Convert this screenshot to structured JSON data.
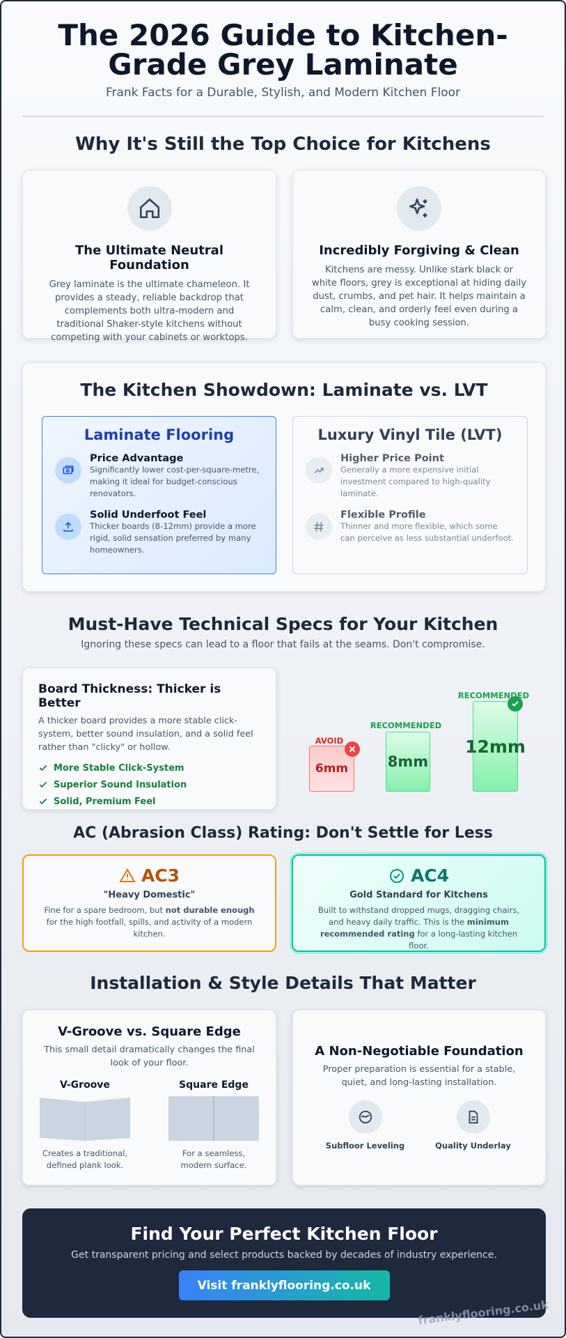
{
  "header": {
    "title": "The 2026 Guide to Kitchen-Grade Grey Laminate",
    "subtitle": "Frank Facts for a Durable, Stylish, and Modern Kitchen Floor"
  },
  "why": {
    "heading": "Why It's Still the Top Choice for Kitchens",
    "cards": [
      {
        "title": "The Ultimate Neutral Foundation",
        "text": "Grey laminate is the ultimate chameleon. It provides a steady, reliable backdrop that complements both ultra-modern and traditional Shaker-style kitchens without competing with your cabinets or worktops."
      },
      {
        "title": "Incredibly Forgiving & Clean",
        "text": "Kitchens are messy. Unlike stark black or white floors, grey is exceptional at hiding daily dust, crumbs, and pet hair. It helps maintain a calm, clean, and orderly feel even during a busy cooking session."
      }
    ]
  },
  "showdown": {
    "heading": "The Kitchen Showdown: Laminate vs. LVT",
    "columns": [
      {
        "title": "Laminate Flooring",
        "items": [
          {
            "title": "Price Advantage",
            "text": "Significantly lower cost-per-square-metre, making it ideal for budget-conscious renovators."
          },
          {
            "title": "Solid Underfoot Feel",
            "text": "Thicker boards (8-12mm) provide a more rigid, solid sensation preferred by many homeowners."
          }
        ]
      },
      {
        "title": "Luxury Vinyl Tile (LVT)",
        "items": [
          {
            "title": "Higher Price Point",
            "text": "Generally a more expensive initial investment compared to high-quality laminate."
          },
          {
            "title": "Flexible Profile",
            "text": "Thinner and more flexible, which some can perceive as less substantial underfoot."
          }
        ]
      }
    ]
  },
  "specs": {
    "heading": "Must-Have Technical Specs for Your Kitchen",
    "subtitle": "Ignoring these specs can lead to a floor that fails at the seams. Don't compromise.",
    "thickness": {
      "title": "Board Thickness: Thicker is Better",
      "text": "A thicker board provides a more stable click-system, better sound insulation, and a solid feel rather than \"clicky\" or hollow.",
      "benefits": [
        "More Stable Click-System",
        "Superior Sound Insulation",
        "Solid, Premium Feel"
      ],
      "boards": [
        {
          "tag": "AVOID",
          "label": "6mm"
        },
        {
          "tag": "RECOMMENDED",
          "label": "8mm"
        },
        {
          "tag": "RECOMMENDED",
          "label": "12mm"
        }
      ]
    }
  },
  "ac": {
    "heading": "AC (Abrasion Class) Rating: Don't Settle for Less",
    "cards": [
      {
        "rating": "AC3",
        "title": "\"Heavy Domestic\"",
        "text": [
          "Fine for a spare bedroom, but ",
          "not durable enough",
          " for the high footfall, spills, and activity of a modern kitchen."
        ]
      },
      {
        "rating": "AC4",
        "title": "Gold Standard for Kitchens",
        "text": [
          "Built to withstand dropped mugs, dragging chairs, and heavy daily traffic. This is the ",
          "minimum recommended rating",
          " for a long-lasting kitchen floor."
        ]
      }
    ]
  },
  "install": {
    "heading": "Installation & Style Details That Matter",
    "edge": {
      "title": "V-Groove vs. Square Edge",
      "text": "This small detail dramatically changes the final look of your floor.",
      "options": [
        {
          "name": "V-Groove",
          "text": "Creates a traditional, defined plank look."
        },
        {
          "name": "Square Edge",
          "text": "For a seamless, modern surface."
        }
      ]
    },
    "foundation": {
      "title": "A Non-Negotiable Foundation",
      "text": "Proper preparation is essential for a stable, quiet, and long-lasting installation.",
      "items": [
        "Subfloor Leveling",
        "Quality Underlay"
      ]
    }
  },
  "cta": {
    "title": "Find Your Perfect Kitchen Floor",
    "text": "Get transparent pricing and select products backed by decades of industry experience.",
    "button": "Visit franklyflooring.co.uk"
  },
  "watermark": "franklyflooring.co.uk"
}
